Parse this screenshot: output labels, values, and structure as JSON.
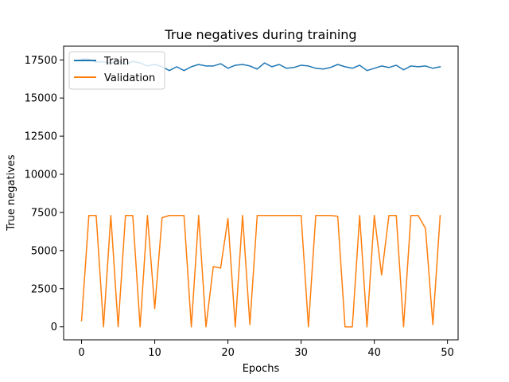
{
  "chart_data": {
    "type": "line",
    "title": "True negatives during training",
    "xlabel": "Epochs",
    "ylabel": "True negatives",
    "xlim": [
      -2.45,
      51.45
    ],
    "ylim": [
      -850,
      18400
    ],
    "xticks": [
      0,
      10,
      20,
      30,
      40,
      50
    ],
    "xtick_labels": [
      "0",
      "10",
      "20",
      "30",
      "40",
      "50"
    ],
    "yticks": [
      0,
      2500,
      5000,
      7500,
      10000,
      12500,
      15000,
      17500
    ],
    "ytick_labels": [
      "0",
      "2500",
      "5000",
      "7500",
      "10000",
      "12500",
      "15000",
      "17500"
    ],
    "grid": false,
    "legend_position": "top-left",
    "x": [
      0,
      1,
      2,
      3,
      4,
      5,
      6,
      7,
      8,
      9,
      10,
      11,
      12,
      13,
      14,
      15,
      16,
      17,
      18,
      19,
      20,
      21,
      22,
      23,
      24,
      25,
      26,
      27,
      28,
      29,
      30,
      31,
      32,
      33,
      34,
      35,
      36,
      37,
      38,
      39,
      40,
      41,
      42,
      43,
      44,
      45,
      46,
      47,
      48,
      49
    ],
    "series": [
      {
        "name": "Train",
        "color": "#1f77b4",
        "values": [
          17550,
          17550,
          17350,
          17380,
          17280,
          17420,
          17200,
          17400,
          17300,
          17100,
          17200,
          17050,
          16800,
          17050,
          16800,
          17050,
          17200,
          17100,
          17100,
          17250,
          16950,
          17150,
          17200,
          17100,
          16900,
          17300,
          17050,
          17200,
          16950,
          17000,
          17150,
          17100,
          16950,
          16900,
          17000,
          17200,
          17050,
          16950,
          17150,
          16800,
          16950,
          17100,
          17000,
          17150,
          16850,
          17100,
          17050,
          17100,
          16950,
          17050
        ]
      },
      {
        "name": "Validation",
        "color": "#ff7f0e",
        "values": [
          400,
          7300,
          7300,
          0,
          7300,
          0,
          7300,
          7300,
          0,
          7300,
          1200,
          7150,
          7300,
          7300,
          7300,
          0,
          7300,
          0,
          3950,
          3850,
          7100,
          0,
          7300,
          150,
          7300,
          7300,
          7300,
          7300,
          7300,
          7300,
          7300,
          0,
          7300,
          7300,
          7300,
          7250,
          0,
          0,
          7300,
          0,
          7300,
          3400,
          7300,
          7300,
          0,
          7300,
          7300,
          6450,
          150,
          7300
        ]
      }
    ]
  },
  "icons": {
    "legend_train_swatch": "line-swatch-icon",
    "legend_validation_swatch": "line-swatch-icon"
  }
}
